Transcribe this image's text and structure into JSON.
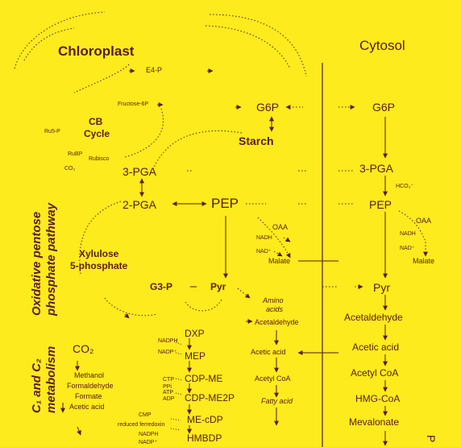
{
  "compartments": {
    "chloroplast": "Chloroplast",
    "cytosol": "Cytosol"
  },
  "side_labels": {
    "oxidative_1": "Oxidative pentose",
    "oxidative_2": "phosphate pathway",
    "c1c2_1": "C₁ and C₂",
    "c1c2_2": "metabolism"
  },
  "chloroplast": {
    "e4p": "E4-P",
    "fructose6p": "Fructose-6P",
    "ru5p": "Ru5-P",
    "cb_cycle_1": "CB",
    "cb_cycle_2": "Cycle",
    "rubp": "RuBP",
    "rubisco": "Rubisco",
    "co2_small": "CO₂",
    "g6p": "G6P",
    "starch": "Starch",
    "pga3": "3-PGA",
    "pga2": "2-PGA",
    "pep": "PEP",
    "xylulose_1": "Xylulose",
    "xylulose_2": "5-phosphate",
    "g3p": "G3-P",
    "pyr": "Pyr",
    "oaa": "OAA",
    "nadh": "NADH",
    "nad": "NAD⁺",
    "malate": "Malate",
    "amino_1": "Amino",
    "amino_2": "acids",
    "acetaldehyde": "Acetaldehyde",
    "acetic_acid": "Acetic acid",
    "acetyl_coa": "Acetyl CoA",
    "fatty_acid": "Fatty acid",
    "dxp": "DXP",
    "mep": "MEP",
    "cdp_me": "CDP-ME",
    "cdp_me2p": "CDP-ME2P",
    "me_cdp": "ME-cDP",
    "hmbdp": "HMBDP",
    "mep_cofactors": [
      "NADPH",
      "NADP⁺",
      "CTP",
      "PPi",
      "ATP",
      "ADP",
      "CMP",
      "reduced ferredoxin",
      "NADPH",
      "NADP⁺"
    ],
    "co2_big": "CO₂",
    "methanol": "Methanol",
    "formaldehyde": "Formaldehyde",
    "formate": "Formate",
    "acetic_acid_c1": "Acetic acid"
  },
  "cytosol": {
    "g6p": "G6P",
    "pga3": "3-PGA",
    "hco3": "HCO₃⁻",
    "pep": "PEP",
    "oaa": "OAA",
    "nadh": "NADH",
    "nad": "NAD⁺",
    "malate": "Malate",
    "pyr": "Pyr",
    "acetaldehyde": "Acetaldehyde",
    "acetic_acid": "Acetic acid",
    "acetyl_coa": "Acetyl CoA",
    "hmg_coa": "HMG-CoA",
    "mevalonate": "Mevalonate",
    "edge_letter": "P"
  },
  "colors": {
    "background": "#fdeb1d",
    "ink": "#5a1a10"
  }
}
